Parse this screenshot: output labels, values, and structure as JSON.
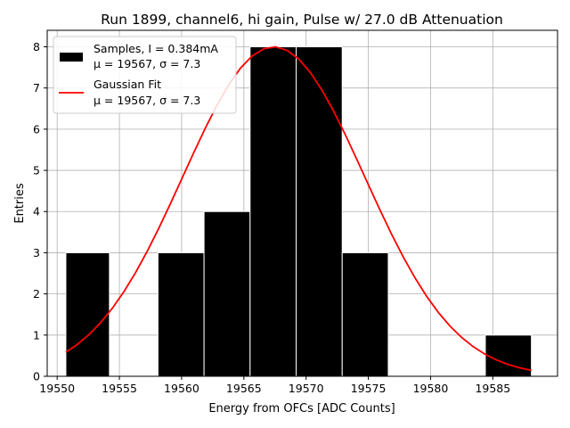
{
  "chart_data": {
    "type": "bar",
    "title": "Run 1899, channel6, hi gain, Pulse w/ 27.0 dB Attenuation",
    "xlabel": "Energy from OFCs [ADC Counts]",
    "ylabel": "Entries",
    "xlim": [
      19549.2,
      19590.2
    ],
    "ylim": [
      0,
      8.4
    ],
    "xticks": [
      19550,
      19555,
      19560,
      19565,
      19570,
      19575,
      19580,
      19585
    ],
    "yticks": [
      0,
      1,
      2,
      3,
      4,
      5,
      6,
      7,
      8
    ],
    "grid": true,
    "legend_position": "top-left",
    "histogram": {
      "name": "Samples, I = 0.384mA",
      "stats": "μ = 19567, σ = 7.3",
      "color": "#000000",
      "edge_color": "#ffffff",
      "bins": [
        {
          "x0": 19550.7,
          "x1": 19554.2,
          "count": 3
        },
        {
          "x0": 19558.1,
          "x1": 19561.8,
          "count": 3
        },
        {
          "x0": 19561.8,
          "x1": 19565.5,
          "count": 4
        },
        {
          "x0": 19565.5,
          "x1": 19569.2,
          "count": 8
        },
        {
          "x0": 19569.2,
          "x1": 19572.9,
          "count": 8
        },
        {
          "x0": 19572.9,
          "x1": 19576.6,
          "count": 3
        },
        {
          "x0": 19584.4,
          "x1": 19588.1,
          "count": 1
        }
      ]
    },
    "fit": {
      "name": "Gaussian Fit",
      "stats": "μ = 19567, σ = 7.3",
      "color": "#ff0000",
      "mu": 19567.4,
      "sigma": 7.3,
      "amplitude": 8.0,
      "x_range": [
        19550.7,
        19588.1
      ]
    }
  }
}
